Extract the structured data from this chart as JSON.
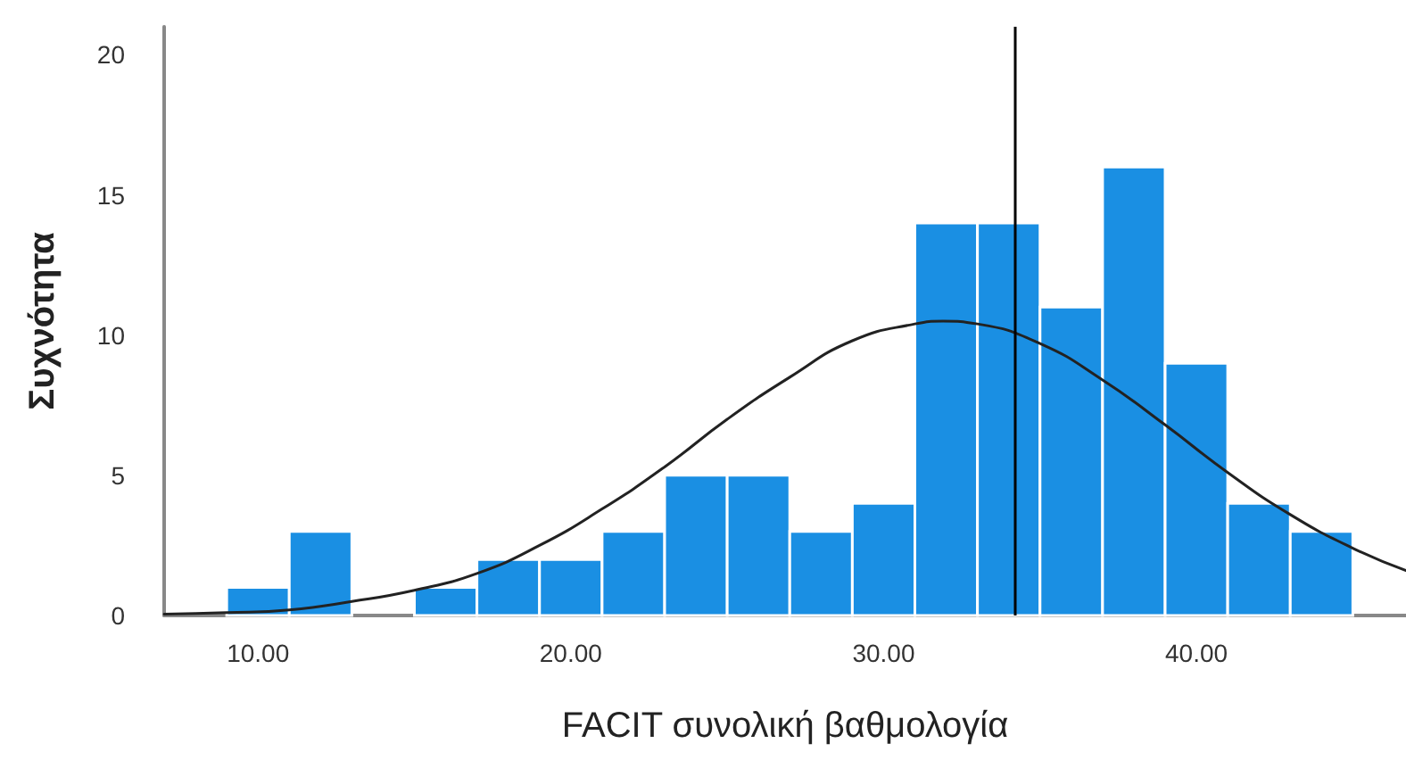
{
  "chart_data": {
    "type": "histogram",
    "xlabel": "FACIT συνολική βαθμολογία",
    "ylabel": "Συχνότητα",
    "bins": [
      9,
      11,
      13,
      15,
      17,
      19,
      21,
      23,
      25,
      27,
      29,
      31,
      33,
      35,
      37,
      39,
      41,
      43,
      45
    ],
    "values": [
      1,
      3,
      0,
      1,
      2,
      2,
      3,
      5,
      5,
      3,
      4,
      14,
      14,
      11,
      16,
      9,
      4,
      3
    ],
    "color": "#1a8fe3",
    "series": [
      {
        "type": "line",
        "color": "#222222",
        "x": [
          7,
          9,
          11,
          13,
          15,
          17,
          19,
          21,
          23,
          25,
          27,
          29,
          31,
          31.9,
          33,
          35,
          37,
          39,
          41,
          43,
          45,
          46.7
        ],
        "values": [
          0.05,
          0.1,
          0.2,
          0.5,
          0.9,
          1.5,
          2.5,
          3.8,
          5.3,
          7.0,
          8.5,
          9.8,
          10.4,
          10.5,
          10.4,
          9.7,
          8.4,
          6.8,
          5.1,
          3.6,
          2.4,
          1.6
        ]
      }
    ],
    "marker": "none",
    "line_style": "solid",
    "xlim": [
      7,
      46.7
    ],
    "xticks": [
      {
        "value": 10,
        "label": "10.00"
      },
      {
        "value": 20,
        "label": "20.00"
      },
      {
        "value": 30,
        "label": "30.00"
      },
      {
        "value": 40,
        "label": "40.00"
      }
    ],
    "ylim": [
      0,
      21
    ],
    "yticks": [
      0,
      5,
      10,
      15,
      20
    ],
    "ref_lines": [
      {
        "axis": "x",
        "value": 34.2,
        "color": "#000000"
      }
    ],
    "grid": false,
    "legend": false
  }
}
